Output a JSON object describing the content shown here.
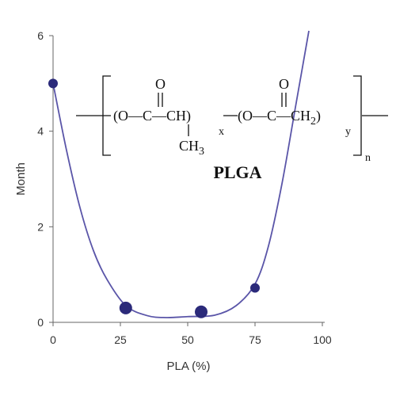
{
  "chart_data": {
    "type": "scatter",
    "title": "",
    "xlabel": "PLA (%)",
    "ylabel": "Month",
    "xlim": [
      0,
      100
    ],
    "ylim": [
      0,
      6
    ],
    "xticks": [
      0,
      25,
      50,
      75,
      100
    ],
    "yticks": [
      0,
      2,
      4,
      6
    ],
    "grid": false,
    "legend": "none",
    "series": [
      {
        "points": [
          {
            "x": 0,
            "y": 5.0
          },
          {
            "x": 27,
            "y": 0.3
          },
          {
            "x": 55,
            "y": 0.22
          },
          {
            "x": 75,
            "y": 0.72
          }
        ],
        "fit_curve": [
          {
            "x": 0,
            "y": 5.0
          },
          {
            "x": 5,
            "y": 3.6
          },
          {
            "x": 10,
            "y": 2.4
          },
          {
            "x": 15,
            "y": 1.5
          },
          {
            "x": 20,
            "y": 0.9
          },
          {
            "x": 27,
            "y": 0.35
          },
          {
            "x": 35,
            "y": 0.14
          },
          {
            "x": 42,
            "y": 0.1
          },
          {
            "x": 50,
            "y": 0.12
          },
          {
            "x": 60,
            "y": 0.15
          },
          {
            "x": 68,
            "y": 0.35
          },
          {
            "x": 75,
            "y": 0.8
          },
          {
            "x": 80,
            "y": 1.6
          },
          {
            "x": 85,
            "y": 2.9
          },
          {
            "x": 90,
            "y": 4.5
          },
          {
            "x": 95,
            "y": 6.1
          }
        ]
      }
    ],
    "colors": {
      "curve": "#5a55a8",
      "marker": "#2b2a7a",
      "axis": "#666666"
    }
  },
  "structure": {
    "name": "PLGA",
    "x_subscript": "x",
    "y_subscript": "y",
    "n_subscript": "n",
    "o_top1": "O",
    "o_top2": "O",
    "segment_a": "(O—C—CH)",
    "segment_b": "(O—C—CH",
    "ch2_sub": "2",
    "methyl": "CH",
    "methyl_sub": "3"
  }
}
